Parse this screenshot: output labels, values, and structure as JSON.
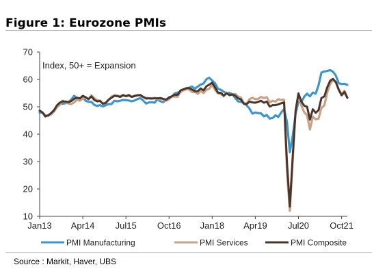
{
  "figure_title": "Figure 1: Eurozone PMIs",
  "source": "Source : Markit, Haver, UBS",
  "chart_data": {
    "type": "line",
    "annotation": "Index, 50+ = Expansion",
    "ylim": [
      10,
      70
    ],
    "yticks": [
      10,
      20,
      30,
      40,
      50,
      60,
      70
    ],
    "x_ticks": [
      "Jan13",
      "Apr14",
      "Jul15",
      "Oct16",
      "Jan18",
      "Apr19",
      "Jul20",
      "Oct21"
    ],
    "x_tick_index": [
      0,
      15,
      30,
      45,
      60,
      75,
      90,
      105
    ],
    "start": "Jan13",
    "end": "Dec21",
    "grid": "none",
    "legend_position": "bottom",
    "series": [
      {
        "name": "PMI Manufacturing",
        "color": "#3d95ce",
        "values": [
          47.9,
          47.9,
          46.8,
          46.7,
          47.7,
          48.8,
          50.3,
          51.4,
          51.1,
          51.3,
          51.6,
          52.7,
          54.0,
          53.2,
          53.0,
          53.4,
          52.2,
          51.8,
          51.8,
          50.7,
          50.3,
          50.6,
          50.1,
          50.6,
          51.0,
          51.0,
          52.2,
          52.0,
          52.2,
          52.5,
          52.4,
          52.3,
          52.0,
          52.3,
          52.8,
          53.2,
          52.3,
          51.2,
          51.6,
          51.7,
          51.5,
          52.8,
          52.0,
          51.7,
          52.6,
          53.5,
          53.7,
          54.9,
          55.2,
          55.4,
          56.2,
          56.7,
          57.0,
          57.4,
          56.6,
          57.4,
          58.1,
          58.5,
          60.1,
          60.6,
          59.6,
          58.6,
          56.6,
          56.2,
          55.5,
          54.9,
          55.1,
          54.6,
          53.2,
          52.0,
          51.8,
          51.4,
          50.5,
          49.3,
          47.5,
          47.9,
          47.7,
          47.6,
          46.5,
          47.0,
          45.7,
          45.9,
          46.9,
          46.3,
          47.9,
          49.2,
          44.5,
          33.4,
          39.4,
          47.4,
          51.8,
          51.7,
          53.7,
          54.8,
          53.8,
          55.2,
          54.8,
          57.9,
          62.5,
          62.9,
          63.1,
          63.4,
          62.8,
          61.4,
          58.6,
          58.3,
          58.4,
          58.0
        ]
      },
      {
        "name": "PMI Services",
        "color": "#c9a184",
        "values": [
          48.6,
          47.9,
          46.4,
          47.0,
          47.2,
          48.3,
          49.8,
          50.7,
          52.2,
          51.6,
          51.2,
          51.0,
          51.6,
          52.6,
          52.2,
          53.1,
          53.2,
          52.8,
          54.2,
          53.1,
          52.4,
          52.3,
          51.1,
          51.6,
          52.6,
          53.7,
          54.2,
          54.1,
          53.8,
          54.4,
          53.8,
          54.0,
          53.7,
          54.1,
          54.2,
          54.2,
          53.6,
          53.3,
          53.1,
          53.1,
          53.3,
          52.8,
          52.9,
          52.8,
          52.2,
          52.8,
          53.8,
          53.7,
          53.7,
          55.5,
          56.0,
          56.4,
          56.3,
          55.4,
          55.4,
          54.7,
          55.8,
          55.0,
          56.2,
          56.6,
          58.0,
          56.2,
          54.9,
          54.7,
          53.8,
          55.2,
          54.2,
          54.5,
          54.7,
          53.7,
          53.4,
          51.2,
          51.2,
          52.8,
          53.3,
          52.8,
          52.9,
          53.6,
          53.2,
          53.5,
          51.6,
          52.2,
          51.9,
          52.8,
          52.5,
          52.6,
          26.4,
          12.0,
          30.5,
          48.3,
          54.7,
          50.5,
          48.0,
          46.9,
          41.7,
          46.4,
          45.4,
          45.7,
          49.6,
          50.5,
          55.2,
          58.3,
          59.8,
          59.0,
          56.4,
          54.6,
          55.9,
          53.3
        ]
      },
      {
        "name": "PMI Composite",
        "color": "#4a352a",
        "values": [
          48.6,
          47.9,
          46.5,
          46.9,
          47.7,
          48.7,
          50.5,
          51.5,
          52.0,
          51.9,
          51.7,
          52.1,
          52.9,
          53.3,
          53.1,
          54.0,
          53.5,
          52.8,
          53.8,
          52.5,
          52.0,
          52.1,
          51.1,
          51.4,
          52.6,
          53.3,
          54.0,
          53.9,
          53.6,
          54.2,
          53.9,
          54.3,
          53.6,
          53.9,
          54.2,
          54.3,
          53.6,
          53.0,
          53.1,
          53.0,
          53.1,
          53.1,
          53.2,
          52.9,
          52.6,
          53.3,
          53.9,
          54.4,
          54.4,
          56.0,
          56.4,
          56.8,
          56.8,
          56.3,
          55.7,
          55.7,
          56.7,
          56.0,
          57.5,
          58.1,
          58.8,
          57.1,
          55.2,
          55.1,
          54.1,
          54.9,
          54.3,
          54.5,
          54.1,
          53.1,
          52.7,
          51.1,
          51.0,
          51.9,
          51.6,
          51.5,
          51.8,
          52.2,
          51.5,
          51.9,
          50.1,
          50.6,
          50.6,
          50.9,
          51.3,
          51.6,
          29.7,
          13.6,
          31.9,
          48.5,
          54.9,
          51.9,
          50.4,
          50.0,
          45.3,
          49.1,
          47.8,
          48.8,
          53.2,
          53.8,
          57.1,
          59.5,
          60.2,
          59.0,
          56.2,
          54.2,
          55.4,
          53.3
        ]
      }
    ]
  }
}
